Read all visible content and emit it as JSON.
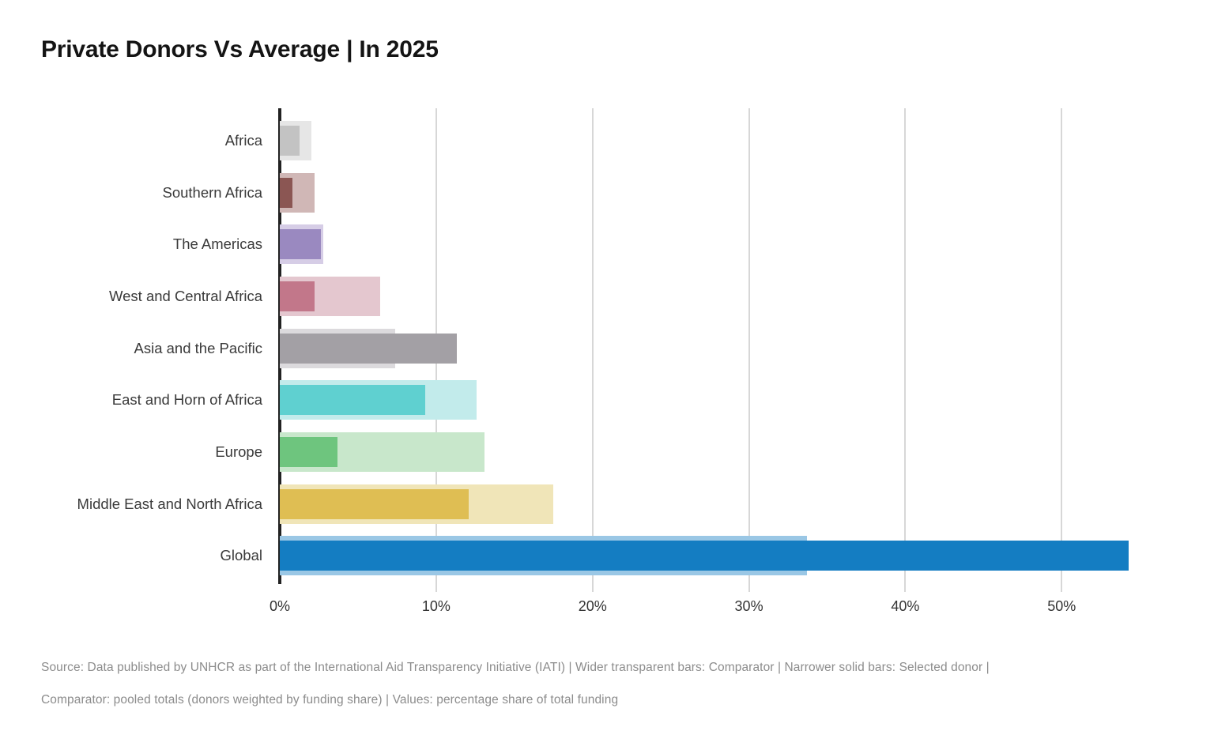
{
  "title": "Private Donors Vs Average | In 2025",
  "footer": {
    "line1": "Source: Data published by UNHCR as part of the International Aid Transparency Initiative (IATI) | Wider transparent bars: Comparator | Narrower solid bars: Selected donor |",
    "line2": "Comparator: pooled totals (donors weighted by funding share) | Values: percentage share of total funding"
  },
  "chart_data": {
    "type": "bar",
    "orientation": "horizontal",
    "title": "Private Donors Vs Average | In 2025",
    "xlabel": "percentage share of total funding",
    "ylabel": "",
    "grid": "vertical",
    "xlim": [
      0,
      56
    ],
    "x_ticks": [
      "0%",
      "10%",
      "20%",
      "30%",
      "40%",
      "50%"
    ],
    "x_tick_values": [
      0,
      10,
      20,
      30,
      40,
      50
    ],
    "categories": [
      "Africa",
      "Southern Africa",
      "The Americas",
      "West and Central Africa",
      "Asia and the Pacific",
      "East and Horn of Africa",
      "Europe",
      "Middle East and North Africa",
      "Global"
    ],
    "series": [
      {
        "name": "Comparator",
        "style": "wide-transparent",
        "values": [
          2.0,
          2.2,
          2.8,
          6.4,
          7.4,
          12.6,
          13.1,
          17.5,
          33.7
        ]
      },
      {
        "name": "Selected donor",
        "style": "narrow-solid",
        "values": [
          1.25,
          0.8,
          2.65,
          2.2,
          11.3,
          9.3,
          3.7,
          12.1,
          54.3
        ]
      }
    ],
    "colors": {
      "solid": [
        "#c3c3c3",
        "#8b5653",
        "#9a89c0",
        "#c2778a",
        "#a3a0a5",
        "#5fd0d0",
        "#6ec57e",
        "#dfbe53",
        "#147dc2"
      ],
      "transparent": [
        "#e6e6e6",
        "#d0b7b6",
        "#d6cde6",
        "#e4c7cf",
        "#dcdadd",
        "#c2ebeb",
        "#c8e7cb",
        "#f0e5b8",
        "#9ac7e5"
      ],
      "axis_line": "#222222",
      "gridline": "#d7d7d7"
    }
  }
}
